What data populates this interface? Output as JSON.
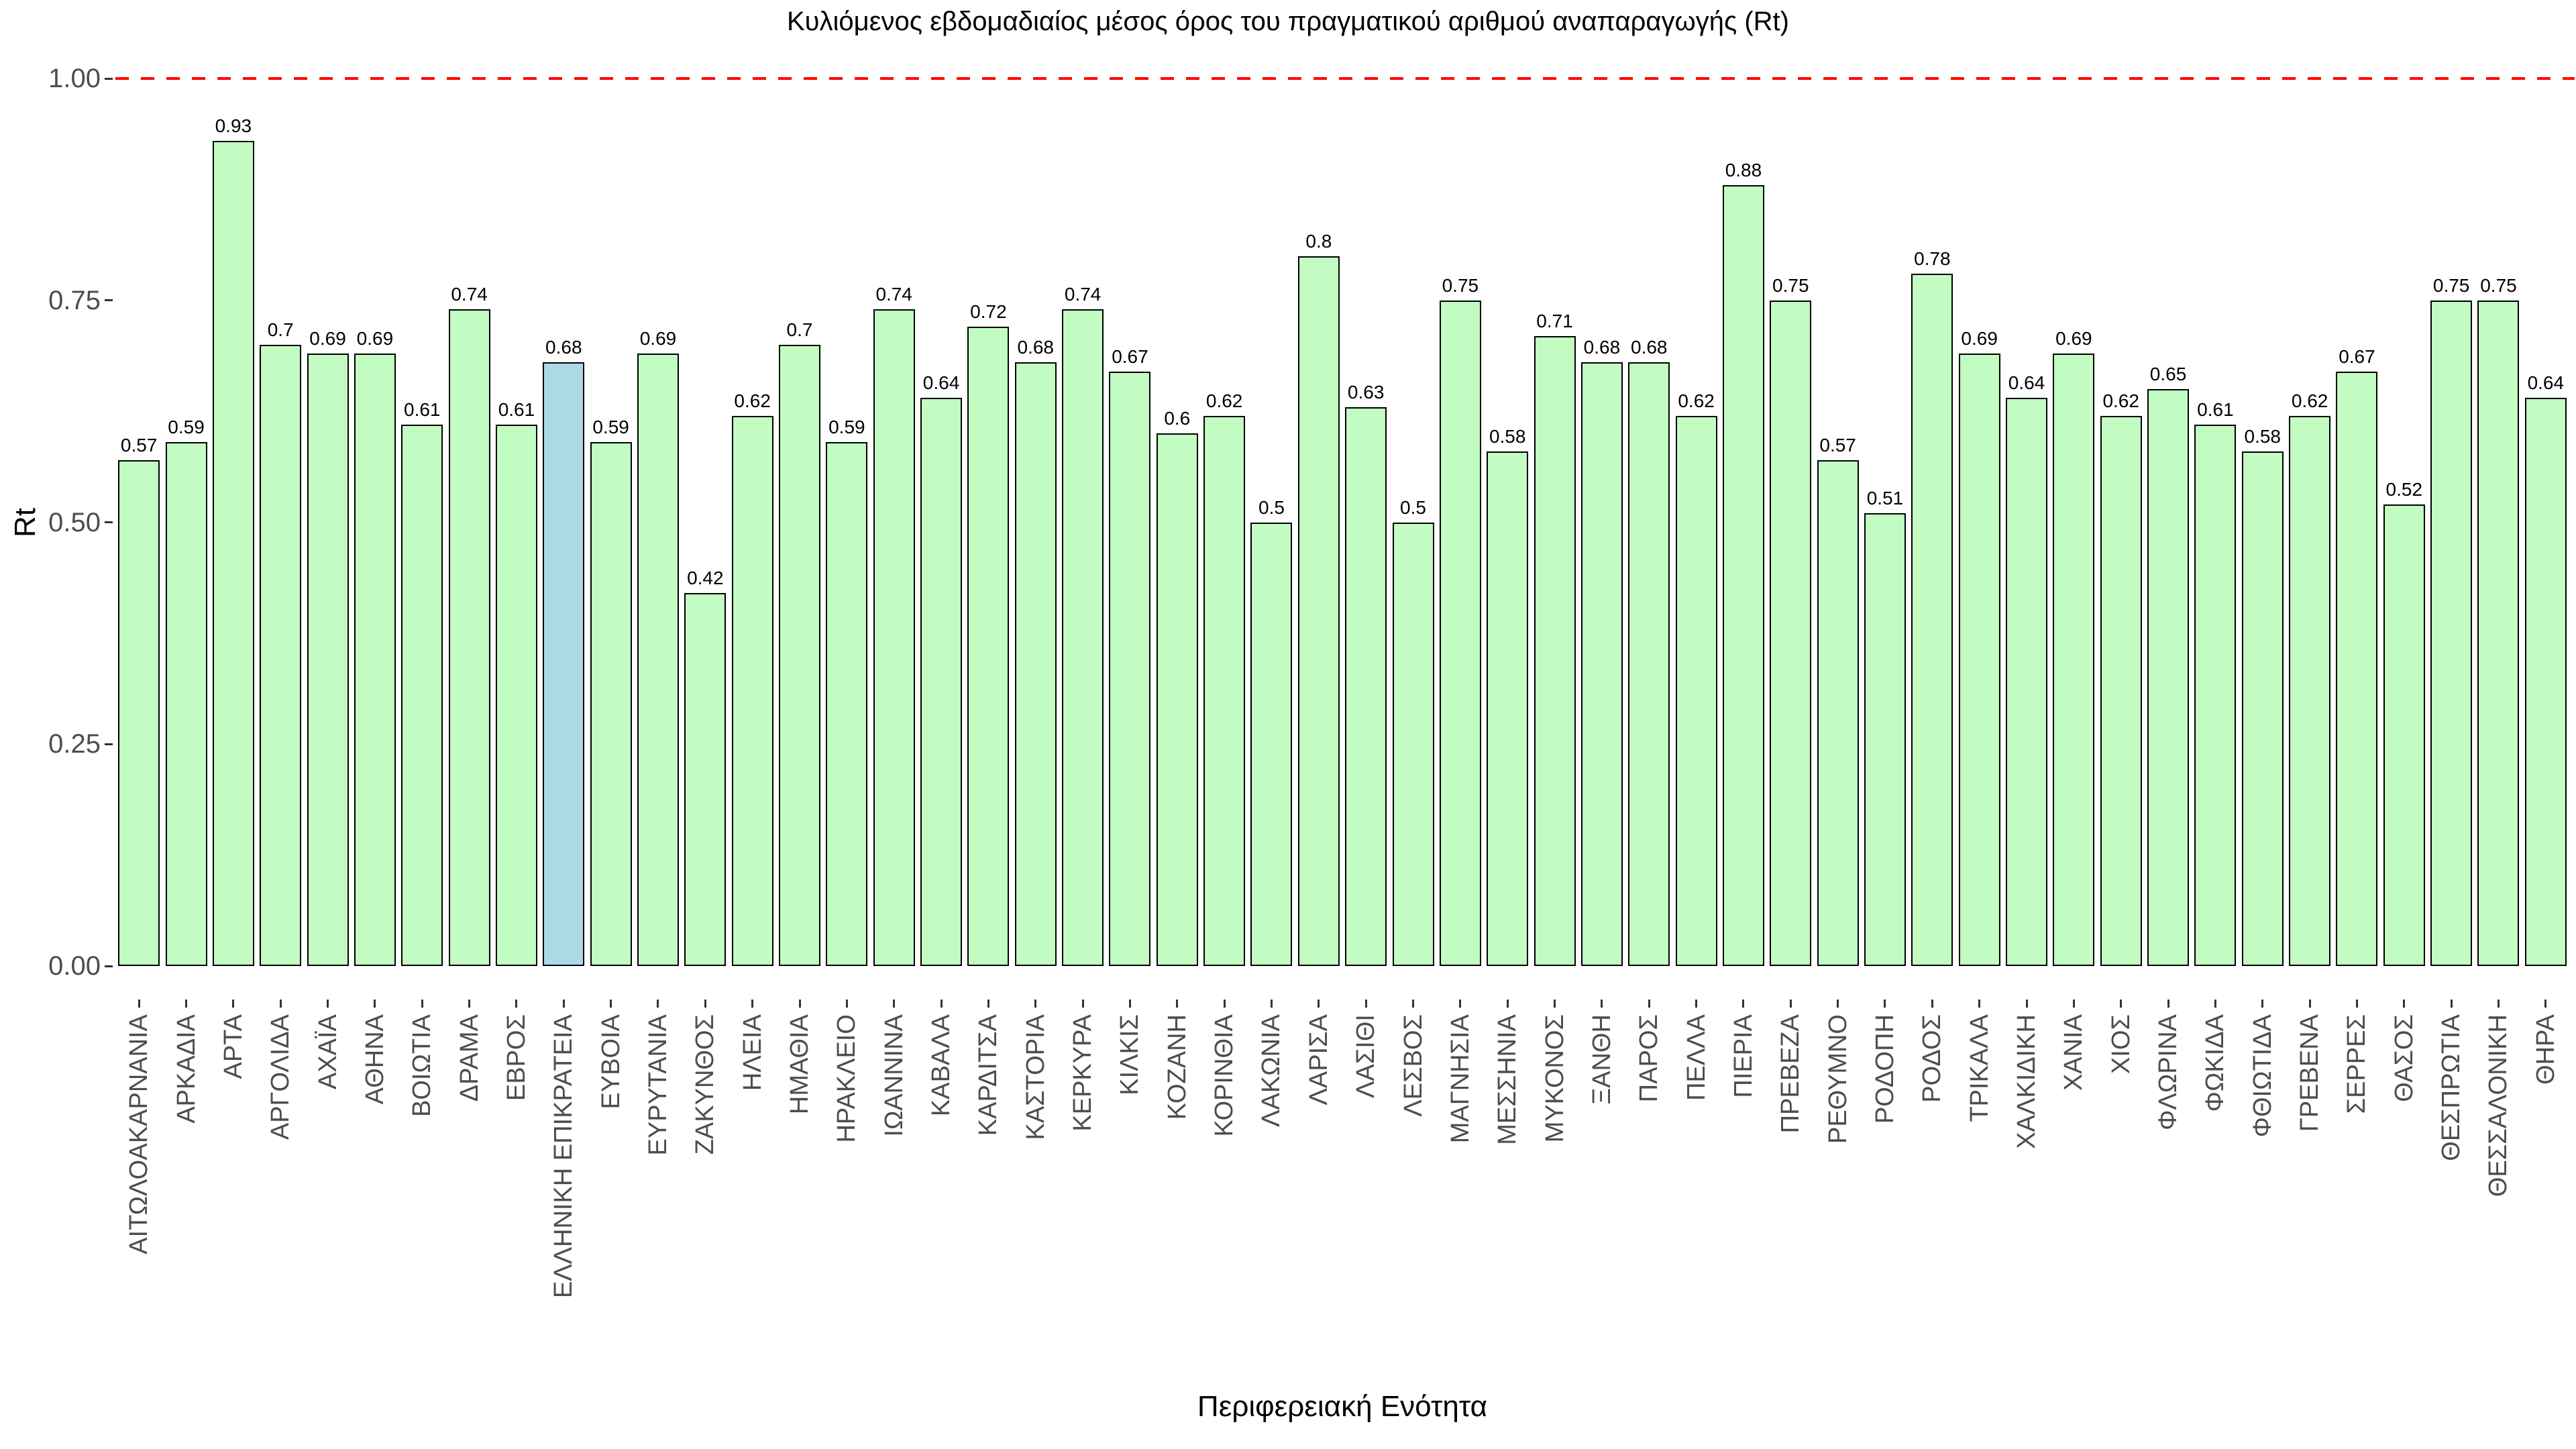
{
  "chart_data": {
    "type": "bar",
    "title": "Κυλιόμενος εβδομαδιαίος μέσος όρος του πραγματικού αριθμού αναπαραγωγής (Rt)",
    "xlabel": "Περιφερειακή Ενότητα",
    "ylabel": "Rt",
    "ylim": [
      0,
      1.05
    ],
    "grid": false,
    "legend": false,
    "yticks": [
      {
        "value": 0.0,
        "label": "0.00"
      },
      {
        "value": 0.25,
        "label": "0.25"
      },
      {
        "value": 0.5,
        "label": "0.50"
      },
      {
        "value": 0.75,
        "label": "0.75"
      },
      {
        "value": 1.0,
        "label": "1.00"
      }
    ],
    "reference_line": {
      "value": 1.0,
      "style": "dashed",
      "color": "#ff0000"
    },
    "bar_fill": "#c2fcc2",
    "bar_highlight_fill": "#add8e6",
    "bar_border": "#000000",
    "axis_text_color": "#4d4d4d",
    "highlight_category": "ΕΛΛΗΝΙΚΗ ΕΠΙΚΡΑΤΕΙΑ",
    "categories": [
      "ΑΙΤΩΛΟΑΚΑΡΝΑΝΙΑ",
      "ΑΡΚΑΔΙΑ",
      "ΑΡΤΑ",
      "ΑΡΓΟΛΙΔΑ",
      "ΑΧΑΪΑ",
      "ΑΘΗΝΑ",
      "ΒΟΙΩΤΙΑ",
      "ΔΡΑΜΑ",
      "ΕΒΡΟΣ",
      "ΕΛΛΗΝΙΚΗ ΕΠΙΚΡΑΤΕΙΑ",
      "ΕΥΒΟΙΑ",
      "ΕΥΡΥΤΑΝΙΑ",
      "ΖΑΚΥΝΘΟΣ",
      "ΗΛΕΙΑ",
      "ΗΜΑΘΙΑ",
      "ΗΡΑΚΛΕΙΟ",
      "ΙΩΑΝΝΙΝΑ",
      "ΚΑΒΑΛΑ",
      "ΚΑΡΔΙΤΣΑ",
      "ΚΑΣΤΟΡΙΑ",
      "ΚΕΡΚΥΡΑ",
      "ΚΙΛΚΙΣ",
      "ΚΟΖΑΝΗ",
      "ΚΟΡΙΝΘΙΑ",
      "ΛΑΚΩΝΙΑ",
      "ΛΑΡΙΣΑ",
      "ΛΑΣΙΘΙ",
      "ΛΕΣΒΟΣ",
      "ΜΑΓΝΗΣΙΑ",
      "ΜΕΣΣΗΝΙΑ",
      "ΜΥΚΟΝΟΣ",
      "ΞΑΝΘΗ",
      "ΠΑΡΟΣ",
      "ΠΕΛΛΑ",
      "ΠΙΕΡΙΑ",
      "ΠΡΕΒΕΖΑ",
      "ΡΕΘΥΜΝΟ",
      "ΡΟΔΟΠΗ",
      "ΡΟΔΟΣ",
      "ΤΡΙΚΑΛΑ",
      "ΧΑΛΚΙΔΙΚΗ",
      "ΧΑΝΙΑ",
      "ΧΙΟΣ",
      "ΦΛΩΡΙΝΑ",
      "ΦΩΚΙΔΑ",
      "ΦΘΙΩΤΙΔΑ",
      "ΓΡΕΒΕΝΑ",
      "ΣΕΡΡΕΣ",
      "ΘΑΣΟΣ",
      "ΘΕΣΠΡΩΤΙΑ",
      "ΘΕΣΣΑΛΟΝΙΚΗ",
      "ΘΗΡΑ"
    ],
    "values": [
      0.57,
      0.59,
      0.93,
      0.7,
      0.69,
      0.69,
      0.61,
      0.74,
      0.61,
      0.68,
      0.59,
      0.69,
      0.42,
      0.62,
      0.7,
      0.59,
      0.74,
      0.64,
      0.72,
      0.68,
      0.74,
      0.67,
      0.6,
      0.62,
      0.5,
      0.8,
      0.63,
      0.5,
      0.75,
      0.58,
      0.71,
      0.68,
      0.68,
      0.62,
      0.88,
      0.75,
      0.57,
      0.51,
      0.78,
      0.69,
      0.64,
      0.69,
      0.62,
      0.65,
      0.61,
      0.58,
      0.62,
      0.67,
      0.52,
      0.75,
      0.75,
      0.64
    ]
  }
}
